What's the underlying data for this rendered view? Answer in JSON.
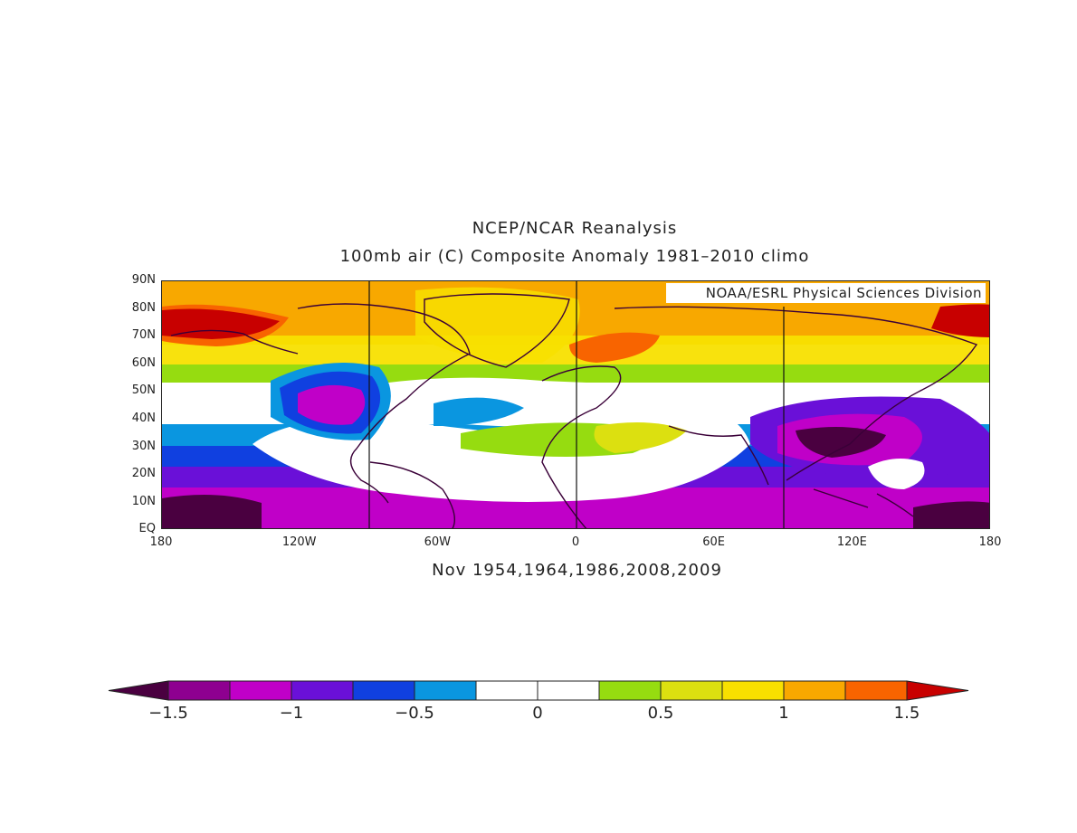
{
  "title": "NCEP/NCAR Reanalysis",
  "subtitle": "100mb air (C) Composite Anomaly 1981–2010 climo",
  "bottom_label": "Nov 1954,1964,1986,2008,2009",
  "credit": "NOAA/ESRL Physical Sciences Division",
  "lat_ticks": [
    "90N",
    "80N",
    "70N",
    "60N",
    "50N",
    "40N",
    "30N",
    "20N",
    "10N",
    "EQ"
  ],
  "lon_ticks": [
    "180",
    "120W",
    "60W",
    "0",
    "60E",
    "120E",
    "180"
  ],
  "colorbar": {
    "labels": [
      "−1.5",
      "−1",
      "−0.5",
      "0",
      "0.5",
      "1",
      "1.5"
    ],
    "colors": [
      "#4a0040",
      "#8e0090",
      "#c000c8",
      "#6a10d8",
      "#1040e0",
      "#0a96e0",
      "#ffffff",
      "#ffffff",
      "#96dc10",
      "#dce010",
      "#f8e000",
      "#f8a800",
      "#f86400",
      "#c80000"
    ]
  },
  "chart_data": {
    "type": "heatmap",
    "variable": "100mb air (C) Composite Anomaly",
    "levels": [
      -1.5,
      -1.25,
      -1,
      -0.75,
      -0.5,
      -0.25,
      0,
      0.25,
      0.5,
      0.75,
      1,
      1.25,
      1.5
    ],
    "lon_range": [
      -180,
      180
    ],
    "lat_range": [
      0,
      90
    ]
  }
}
